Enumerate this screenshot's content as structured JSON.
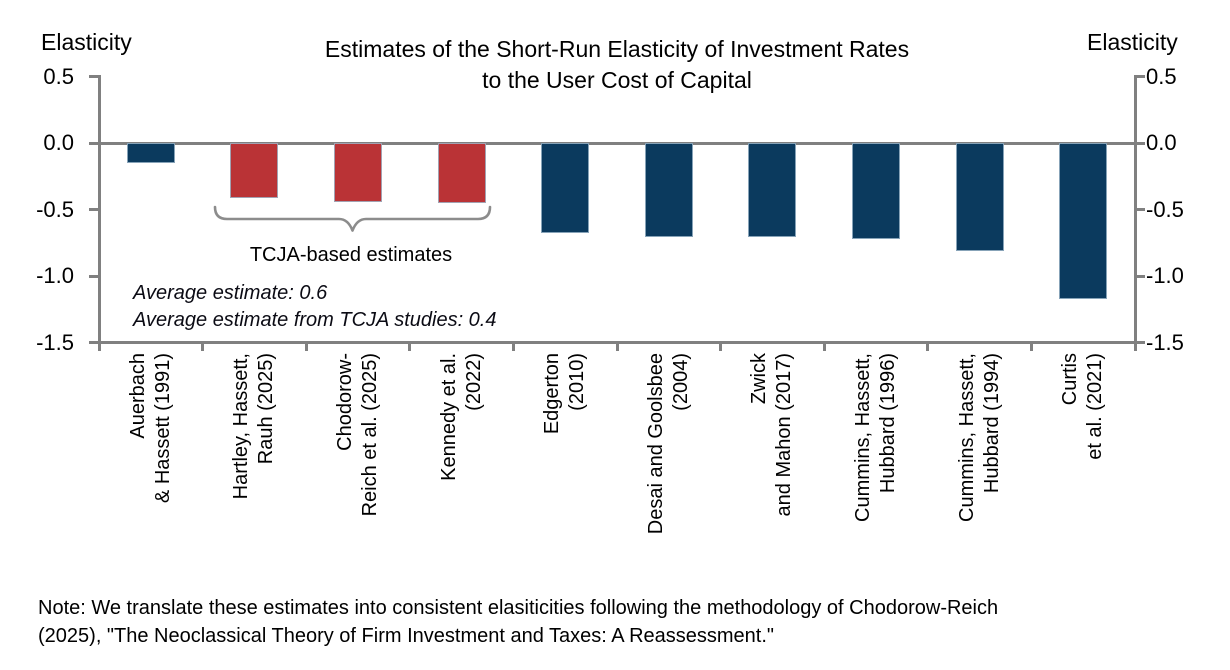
{
  "chart_data": {
    "type": "bar",
    "title": "Estimates of the Short-Run Elasticity of Investment Rates\nto the User Cost of Capital",
    "ylabel_left": "Elasticity",
    "ylabel_right": "Elasticity",
    "ylim": [
      -1.5,
      0.5
    ],
    "yticks": [
      0.5,
      0.0,
      -0.5,
      -1.0,
      -1.5
    ],
    "ytick_labels": [
      "0.5",
      "0.0",
      "-0.5",
      "-1.0",
      "-1.5"
    ],
    "grid": "off",
    "legend": "none",
    "categories": [
      "Auerbach\n& Hassett (1991)",
      "Hartley, Hassett,\nRauh (2025)",
      "Chodorow-\nReich et al. (2025)",
      "Kennedy et al.\n(2022)",
      "Edgerton\n(2010)",
      "Desai and Goolsbee\n(2004)",
      "Zwick\nand Mahon (2017)",
      "Cummins, Hassett,\nHubbard (1996)",
      "Cummins, Hassett,\nHubbard (1994)",
      "Curtis\net al. (2021)"
    ],
    "values": [
      -0.15,
      -0.41,
      -0.44,
      -0.45,
      -0.68,
      -0.71,
      -0.71,
      -0.72,
      -0.81,
      -1.17
    ],
    "tcja_indices": [
      1,
      2,
      3
    ],
    "colors": {
      "bar_default": "#0b3a5e",
      "bar_tcja": "#ba3336",
      "axis": "#808080",
      "bracket": "#8c8c8c"
    },
    "bracket_label": "TCJA-based estimates",
    "annotations": [
      "Average estimate: 0.6",
      "Average estimate from TCJA studies: 0.4"
    ],
    "note": "Note: We translate these estimates into consistent elasiticities following the methodology of Chodorow-Reich\n(2025), \"The Neoclassical Theory of Firm Investment and Taxes: A Reassessment.\""
  }
}
